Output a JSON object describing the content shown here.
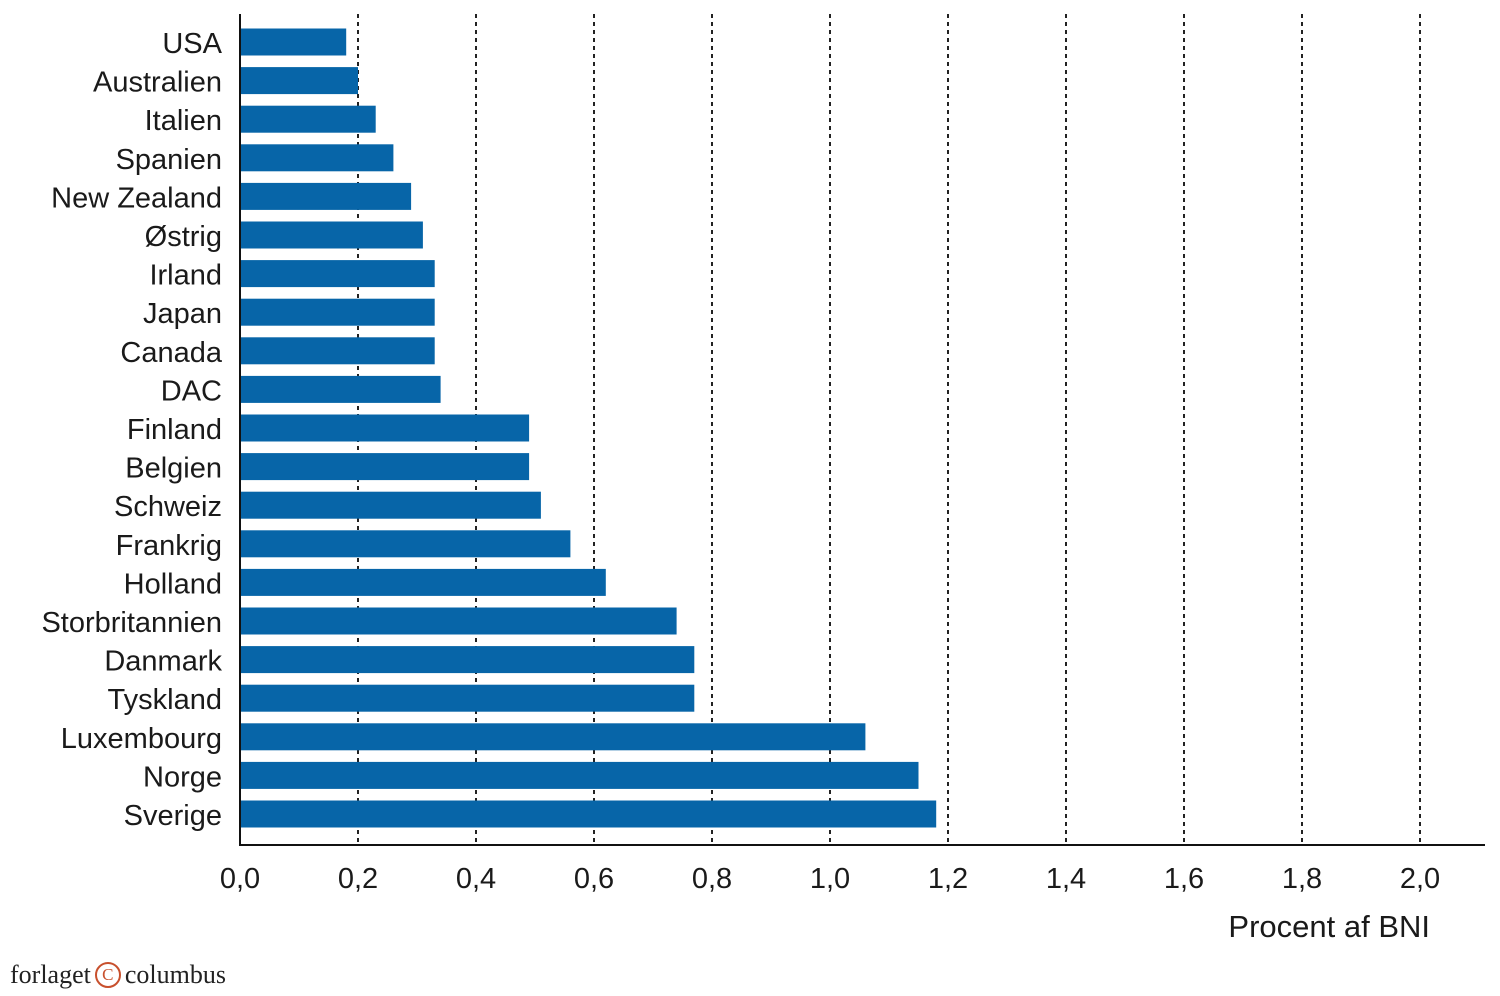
{
  "chart_data": {
    "type": "bar",
    "orientation": "horizontal",
    "categories": [
      "USA",
      "Australien",
      "Italien",
      "Spanien",
      "New Zealand",
      "Østrig",
      "Irland",
      "Japan",
      "Canada",
      "DAC",
      "Finland",
      "Belgien",
      "Schweiz",
      "Frankrig",
      "Holland",
      "Storbritannien",
      "Danmark",
      "Tyskland",
      "Luxembourg",
      "Norge",
      "Sverige"
    ],
    "values": [
      0.18,
      0.2,
      0.23,
      0.26,
      0.29,
      0.31,
      0.33,
      0.33,
      0.33,
      0.34,
      0.49,
      0.49,
      0.51,
      0.56,
      0.62,
      0.74,
      0.77,
      0.77,
      1.06,
      1.15,
      1.18
    ],
    "xlim": [
      0,
      2.0
    ],
    "xticks": [
      0,
      0.2,
      0.4,
      0.6,
      0.8,
      1.0,
      1.2,
      1.4,
      1.6,
      1.8,
      2.0
    ],
    "xtick_labels": [
      "0,0",
      "0,2",
      "0,4",
      "0,6",
      "0,8",
      "1,0",
      "1,2",
      "1,4",
      "1,6",
      "1,8",
      "2,0"
    ],
    "xlabel": "Procent af BNI",
    "ylabel": "",
    "title": "",
    "grid": "vertical dashed",
    "bar_color": "#0765a8"
  },
  "publisher": {
    "name_left": "forlaget",
    "logo": "C",
    "name_right": "columbus",
    "logo_color": "#c8502d"
  }
}
